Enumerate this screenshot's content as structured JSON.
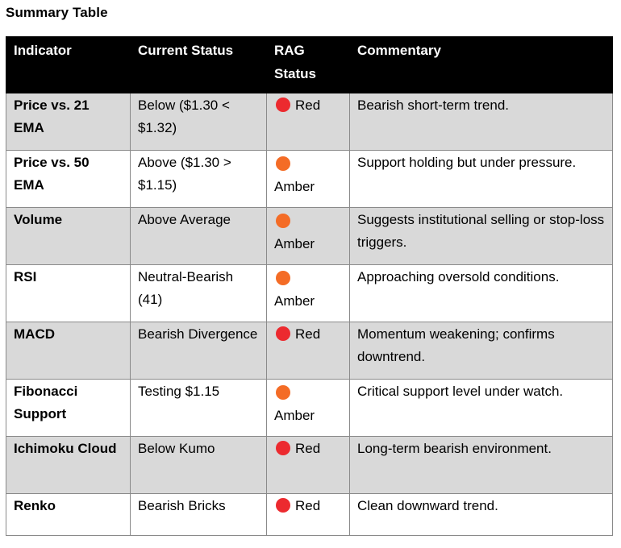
{
  "title": "Summary Table",
  "colors": {
    "red": "#ec2a2f",
    "amber": "#f46c26",
    "header_bg": "#000000",
    "shaded_row": "#d9d9d9"
  },
  "table": {
    "headers": [
      "Indicator",
      "Current Status",
      "RAG Status",
      "Commentary"
    ],
    "rows": [
      {
        "indicator": "Price vs. 21 EMA",
        "status": "Below ($1.30 < $1.32)",
        "rag": "Red",
        "commentary": "Bearish short-term trend."
      },
      {
        "indicator": "Price vs. 50 EMA",
        "status": "Above ($1.30 > $1.15)",
        "rag": "Amber",
        "commentary": "Support holding but under pressure."
      },
      {
        "indicator": "Volume",
        "status": "Above Average",
        "rag": "Amber",
        "commentary": "Suggests institutional selling or stop-loss triggers."
      },
      {
        "indicator": "RSI",
        "status": "Neutral-Bearish (41)",
        "rag": "Amber",
        "commentary": "Approaching oversold conditions."
      },
      {
        "indicator": "MACD",
        "status": "Bearish Divergence",
        "rag": "Red",
        "commentary": "Momentum weakening; confirms downtrend."
      },
      {
        "indicator": "Fibonacci Support",
        "status": "Testing $1.15",
        "rag": "Amber",
        "commentary": "Critical support level under watch."
      },
      {
        "indicator": "Ichimoku Cloud",
        "status": "Below Kumo",
        "rag": "Red",
        "commentary": "Long-term bearish environment."
      },
      {
        "indicator": "Renko",
        "status": "Bearish Bricks",
        "rag": "Red",
        "commentary": "Clean downward trend."
      }
    ]
  }
}
